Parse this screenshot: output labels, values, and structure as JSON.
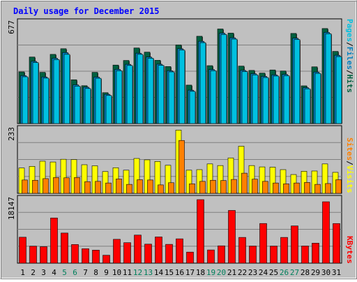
{
  "chart_data": {
    "type": "bar",
    "title": "Daily usage for December 2015",
    "categories": [
      "1",
      "2",
      "3",
      "4",
      "5",
      "6",
      "7",
      "8",
      "9",
      "10",
      "11",
      "12",
      "13",
      "14",
      "15",
      "16",
      "17",
      "18",
      "19",
      "20",
      "21",
      "22",
      "23",
      "24",
      "25",
      "26",
      "27",
      "28",
      "29",
      "30",
      "31"
    ],
    "weekend_days": [
      "5",
      "6",
      "12",
      "13",
      "19",
      "20",
      "26",
      "27"
    ],
    "panels": [
      {
        "id": "hits-panel",
        "max_label": "677",
        "ylim": [
          0,
          677
        ],
        "right_label": [
          "Pages",
          "/",
          "Files",
          "/",
          "Hits"
        ],
        "right_label_colors": [
          "#00c0e0",
          "#000000",
          "#0080c0",
          "#000000",
          "#006040"
        ],
        "series": [
          {
            "name": "Hits",
            "color": "#006040",
            "values": [
              348,
              448,
              345,
              466,
              504,
              295,
              255,
              345,
              208,
              394,
              425,
              509,
              481,
              426,
              384,
              530,
              259,
              588,
              390,
              637,
              609,
              387,
              358,
              340,
              361,
              354,
              607,
              254,
              382,
              640,
              486
            ]
          },
          {
            "name": "Files",
            "color": "#0080c0",
            "values": [
              323,
              419,
              314,
              440,
              478,
              261,
              245,
              313,
              197,
              365,
              399,
              474,
              448,
              400,
              356,
              504,
              225,
              554,
              364,
              609,
              578,
              358,
              336,
              318,
              328,
              331,
              575,
              242,
              347,
              614,
              460
            ]
          },
          {
            "name": "Pages",
            "color": "#00c0e0",
            "values": [
              315,
              411,
              306,
              431,
              466,
              252,
              236,
              305,
              189,
              356,
              391,
              466,
              440,
              392,
              348,
              495,
              217,
              545,
              356,
              600,
              569,
              350,
              328,
              310,
              320,
              322,
              566,
              234,
              338,
              605,
              451
            ]
          }
        ]
      },
      {
        "id": "visits-panel",
        "max_label": "233",
        "ylim": [
          0,
          233
        ],
        "right_label": [
          "Sites",
          "/",
          "Visits"
        ],
        "right_label_colors": [
          "#ff8000",
          "#000000",
          "#ffff00"
        ],
        "series": [
          {
            "name": "Visits",
            "color": "#ffff00",
            "values": [
              93,
              99,
              118,
              115,
              125,
              124,
              105,
              101,
              80,
              94,
              85,
              128,
              123,
              117,
              103,
              232,
              85,
              87,
              108,
              102,
              130,
              173,
              102,
              97,
              96,
              87,
              69,
              81,
              82,
              108,
              77
            ]
          },
          {
            "name": "Sites",
            "color": "#ff8000",
            "values": [
              49,
              48,
              54,
              58,
              57,
              58,
              43,
              44,
              38,
              53,
              33,
              50,
              49,
              31,
              39,
              194,
              35,
              44,
              48,
              47,
              51,
              74,
              52,
              44,
              38,
              35,
              38,
              40,
              33,
              36,
              50
            ]
          }
        ]
      },
      {
        "id": "kbytes-panel",
        "max_label": "18147",
        "ylim": [
          0,
          18147
        ],
        "right_label": [
          "KBytes"
        ],
        "right_label_colors": [
          "#ff0000"
        ],
        "series": [
          {
            "name": "KBytes",
            "color": "#ff0000",
            "values": [
              7410,
              4850,
              4700,
              12910,
              8600,
              5330,
              4120,
              3720,
              2260,
              6810,
              5850,
              8020,
              5430,
              7490,
              5370,
              6950,
              3160,
              18147,
              3770,
              4950,
              15060,
              7360,
              4890,
              11330,
              4880,
              7360,
              10640,
              4900,
              5710,
              17540,
              11320
            ]
          }
        ]
      }
    ]
  }
}
